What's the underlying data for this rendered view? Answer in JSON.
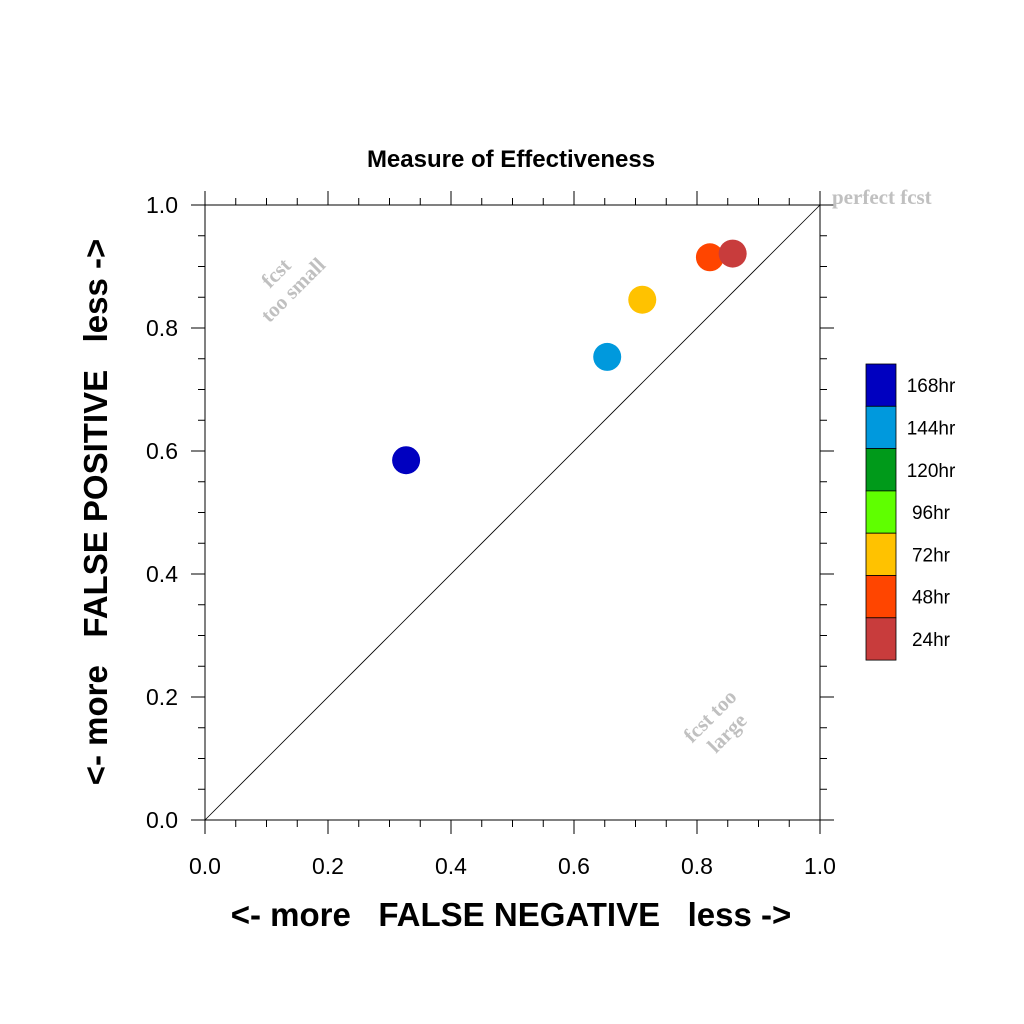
{
  "chart_data": {
    "type": "scatter",
    "title": "Measure of Effectiveness",
    "xlabel": "<- more   FALSE NEGATIVE   less ->",
    "ylabel": "<- more   FALSE POSITIVE   less ->",
    "xlim": [
      0.0,
      1.0
    ],
    "ylim": [
      0.0,
      1.0
    ],
    "xticks": [
      "0.0",
      "0.2",
      "0.4",
      "0.6",
      "0.8",
      "1.0"
    ],
    "yticks": [
      "0.0",
      "0.2",
      "0.4",
      "0.6",
      "0.8",
      "1.0"
    ],
    "grid": false,
    "legend_position": "right",
    "series": [
      {
        "name": "168hr",
        "color": "#0000c0",
        "x": 0.327,
        "y": 0.585
      },
      {
        "name": "144hr",
        "color": "#0099dd",
        "x": 0.654,
        "y": 0.753
      },
      {
        "name": "120hr",
        "color": "#009a1a",
        "x": null,
        "y": null
      },
      {
        "name": "96hr",
        "color": "#5fff00",
        "x": null,
        "y": null
      },
      {
        "name": "72hr",
        "color": "#ffc200",
        "x": 0.711,
        "y": 0.846
      },
      {
        "name": "48hr",
        "color": "#ff4500",
        "x": 0.821,
        "y": 0.915
      },
      {
        "name": "24hr",
        "color": "#c83c3c",
        "x": 0.858,
        "y": 0.921
      }
    ],
    "annotations": {
      "perfect": "perfect fcst",
      "too_small_1": "fcst",
      "too_small_2": "too small",
      "too_large_1": "fcst too",
      "too_large_2": "large"
    }
  }
}
